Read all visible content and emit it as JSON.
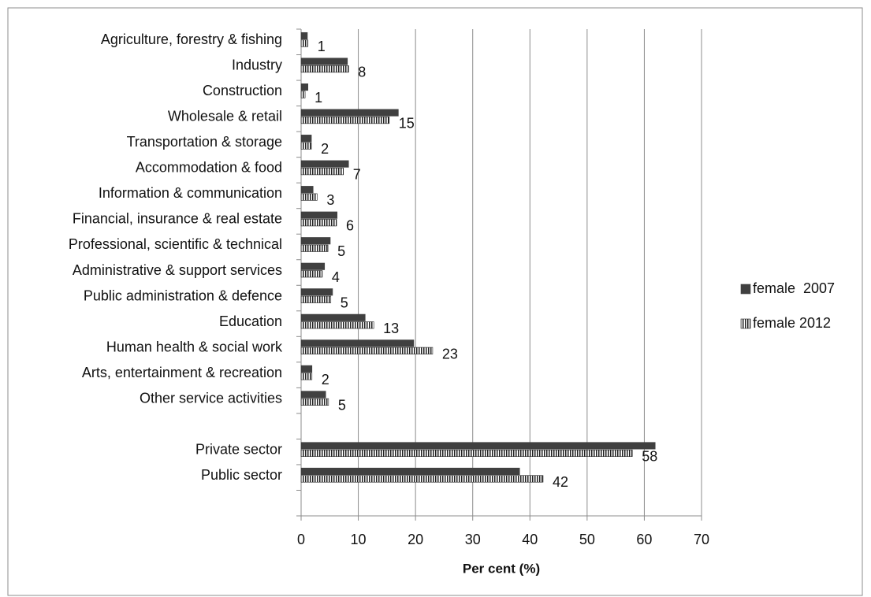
{
  "chart_data": {
    "type": "bar",
    "orientation": "horizontal",
    "x_label": "Per cent (%)",
    "categories": [
      "Agriculture, forestry & fishing",
      "Industry",
      "Construction",
      "Wholesale & retail",
      "Transportation & storage",
      "Accommodation & food",
      "Information & communication",
      "Financial, insurance & real estate",
      "Professional, scientific & technical",
      "Administrative & support services",
      "Public administration & defence",
      "Education",
      "Human health & social work",
      "Arts, entertainment & recreation",
      "Other service activities",
      null,
      "Private sector",
      "Public sector",
      null
    ],
    "series": [
      {
        "name": "female  2007",
        "color": "#404040",
        "pattern": "solid",
        "values": [
          1.1,
          8.1,
          1.2,
          17.0,
          1.8,
          8.3,
          2.1,
          6.3,
          5.1,
          4.1,
          5.5,
          11.2,
          19.7,
          1.9,
          4.3,
          null,
          61.9,
          38.2,
          null
        ]
      },
      {
        "name": "female 2012",
        "color": "#202020",
        "pattern": "vertical-stripes",
        "values": [
          1.2,
          8.3,
          0.7,
          15.4,
          1.8,
          7.4,
          2.8,
          6.2,
          4.7,
          3.7,
          5.2,
          12.7,
          23.0,
          1.9,
          4.8,
          null,
          57.9,
          42.3,
          null
        ],
        "value_labels": [
          "1",
          "8",
          "1",
          "15",
          "2",
          "7",
          "3",
          "6",
          "5",
          "4",
          "5",
          "13",
          "23",
          "2",
          "5",
          null,
          "58",
          "42",
          null
        ]
      }
    ],
    "xlim": [
      0,
      70
    ],
    "xticks": [
      0,
      10,
      20,
      30,
      40,
      50,
      60,
      70
    ],
    "grid": true,
    "legend": "right"
  }
}
